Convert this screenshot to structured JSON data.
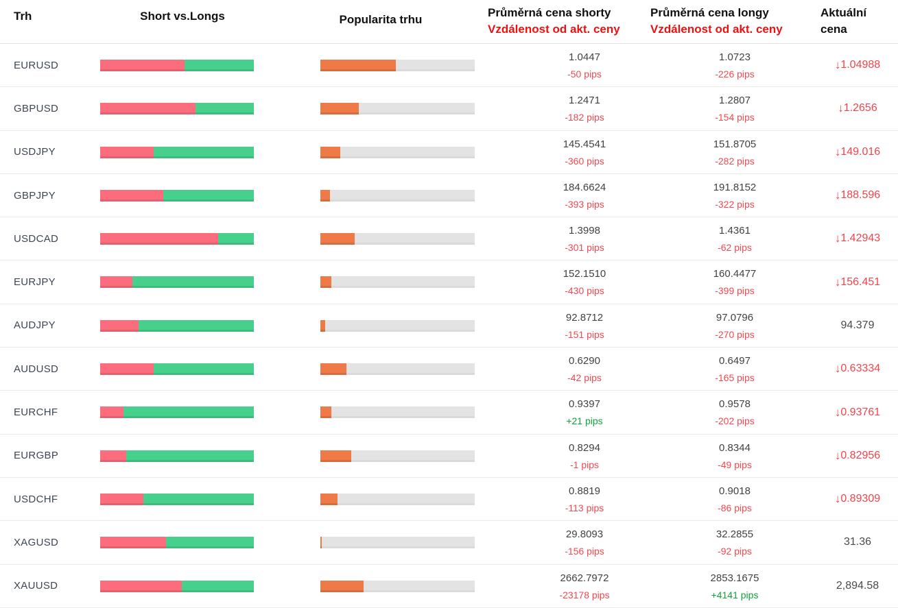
{
  "header": {
    "market": "Trh",
    "sentiment": "Short vs.Longs",
    "popularity": "Popularita trhu",
    "shorts_line1": "Průměrná cena shorty",
    "shorts_line2": "Vzdálenost od akt. ceny",
    "longs_line1": "Průměrná cena longy",
    "longs_line2": "Vzdálenost od akt. ceny",
    "price_line1": "Aktuální",
    "price_line2": "cena"
  },
  "icons": {
    "down_arrow": "↓"
  },
  "colors": {
    "bar_short": "#fb6d7d",
    "bar_long": "#47d08c",
    "bar_popularity": "#ee7a48",
    "bar_track": "#e3e3e3",
    "header_red": "#ee1111",
    "pips_negative": "#f4484f",
    "pips_positive": "#10a33c",
    "price_down": "#f4434b"
  },
  "rows": [
    {
      "market": "EURUSD",
      "short_pct": 55,
      "long_pct": 45,
      "popularity_pct": 49,
      "short_price": "1.0447",
      "short_pips": "-50 pips",
      "long_price": "1.0723",
      "long_pips": "-226 pips",
      "current_price": "1.04988",
      "direction": "down"
    },
    {
      "market": "GBPUSD",
      "short_pct": 62,
      "long_pct": 38,
      "popularity_pct": 25,
      "short_price": "1.2471",
      "short_pips": "-182 pips",
      "long_price": "1.2807",
      "long_pips": "-154 pips",
      "current_price": "1.2656",
      "direction": "down"
    },
    {
      "market": "USDJPY",
      "short_pct": 35,
      "long_pct": 65,
      "popularity_pct": 13,
      "short_price": "145.4541",
      "short_pips": "-360 pips",
      "long_price": "151.8705",
      "long_pips": "-282 pips",
      "current_price": "149.016",
      "direction": "down"
    },
    {
      "market": "GBPJPY",
      "short_pct": 41,
      "long_pct": 59,
      "popularity_pct": 6,
      "short_price": "184.6624",
      "short_pips": "-393 pips",
      "long_price": "191.8152",
      "long_pips": "-322 pips",
      "current_price": "188.596",
      "direction": "down"
    },
    {
      "market": "USDCAD",
      "short_pct": 77,
      "long_pct": 23,
      "popularity_pct": 22,
      "short_price": "1.3998",
      "short_pips": "-301 pips",
      "long_price": "1.4361",
      "long_pips": "-62 pips",
      "current_price": "1.42943",
      "direction": "down"
    },
    {
      "market": "EURJPY",
      "short_pct": 21,
      "long_pct": 79,
      "popularity_pct": 7,
      "short_price": "152.1510",
      "short_pips": "-430 pips",
      "long_price": "160.4477",
      "long_pips": "-399 pips",
      "current_price": "156.451",
      "direction": "down"
    },
    {
      "market": "AUDJPY",
      "short_pct": 25,
      "long_pct": 75,
      "popularity_pct": 3,
      "short_price": "92.8712",
      "short_pips": "-151 pips",
      "long_price": "97.0796",
      "long_pips": "-270 pips",
      "current_price": "94.379",
      "direction": "none"
    },
    {
      "market": "AUDUSD",
      "short_pct": 35,
      "long_pct": 65,
      "popularity_pct": 17,
      "short_price": "0.6290",
      "short_pips": "-42 pips",
      "long_price": "0.6497",
      "long_pips": "-165 pips",
      "current_price": "0.63334",
      "direction": "down"
    },
    {
      "market": "EURCHF",
      "short_pct": 15,
      "long_pct": 85,
      "popularity_pct": 7,
      "short_price": "0.9397",
      "short_pips": "+21 pips",
      "long_price": "0.9578",
      "long_pips": "-202 pips",
      "current_price": "0.93761",
      "direction": "down"
    },
    {
      "market": "EURGBP",
      "short_pct": 17,
      "long_pct": 83,
      "popularity_pct": 20,
      "short_price": "0.8294",
      "short_pips": "-1 pips",
      "long_price": "0.8344",
      "long_pips": "-49 pips",
      "current_price": "0.82956",
      "direction": "down"
    },
    {
      "market": "USDCHF",
      "short_pct": 28,
      "long_pct": 72,
      "popularity_pct": 11,
      "short_price": "0.8819",
      "short_pips": "-113 pips",
      "long_price": "0.9018",
      "long_pips": "-86 pips",
      "current_price": "0.89309",
      "direction": "down"
    },
    {
      "market": "XAGUSD",
      "short_pct": 43,
      "long_pct": 57,
      "popularity_pct": 1,
      "short_price": "29.8093",
      "short_pips": "-156 pips",
      "long_price": "32.2855",
      "long_pips": "-92 pips",
      "current_price": "31.36",
      "direction": "none"
    },
    {
      "market": "XAUUSD",
      "short_pct": 53,
      "long_pct": 47,
      "popularity_pct": 28,
      "short_price": "2662.7972",
      "short_pips": "-23178 pips",
      "long_price": "2853.1675",
      "long_pips": "+4141 pips",
      "current_price": "2,894.58",
      "direction": "none"
    }
  ]
}
